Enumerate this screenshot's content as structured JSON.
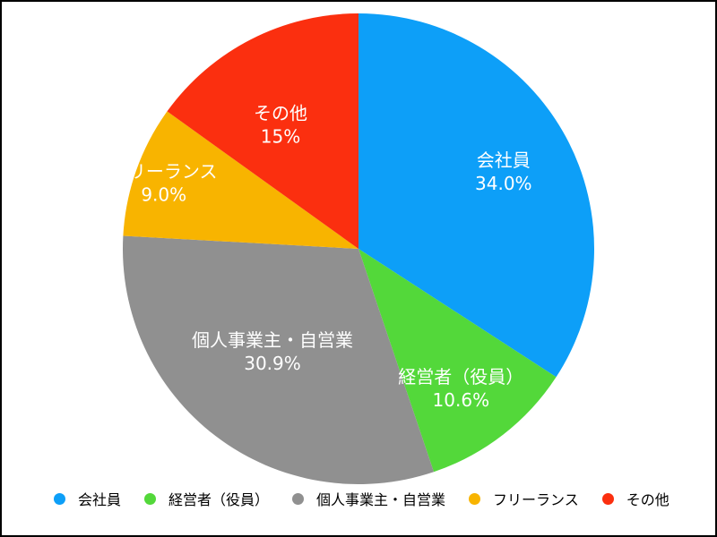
{
  "chart_data": {
    "type": "pie",
    "start_angle_deg": 0,
    "direction": "clockwise",
    "legend_position": "bottom",
    "slices": [
      {
        "label": "会社員",
        "value": 34.0,
        "value_label": "34.0%",
        "color": "#0d9ff8"
      },
      {
        "label": "経営者（役員）",
        "value": 10.6,
        "value_label": "10.6%",
        "color": "#53d83a"
      },
      {
        "label": "個人事業主・自営業",
        "value": 30.9,
        "value_label": "30.9%",
        "color": "#909090"
      },
      {
        "label": "フリーランス",
        "value": 9.0,
        "value_label": "9.0%",
        "color": "#f8b400"
      },
      {
        "label": "その他",
        "value": 15,
        "value_label": "15%",
        "color": "#fb2f0f"
      }
    ]
  }
}
